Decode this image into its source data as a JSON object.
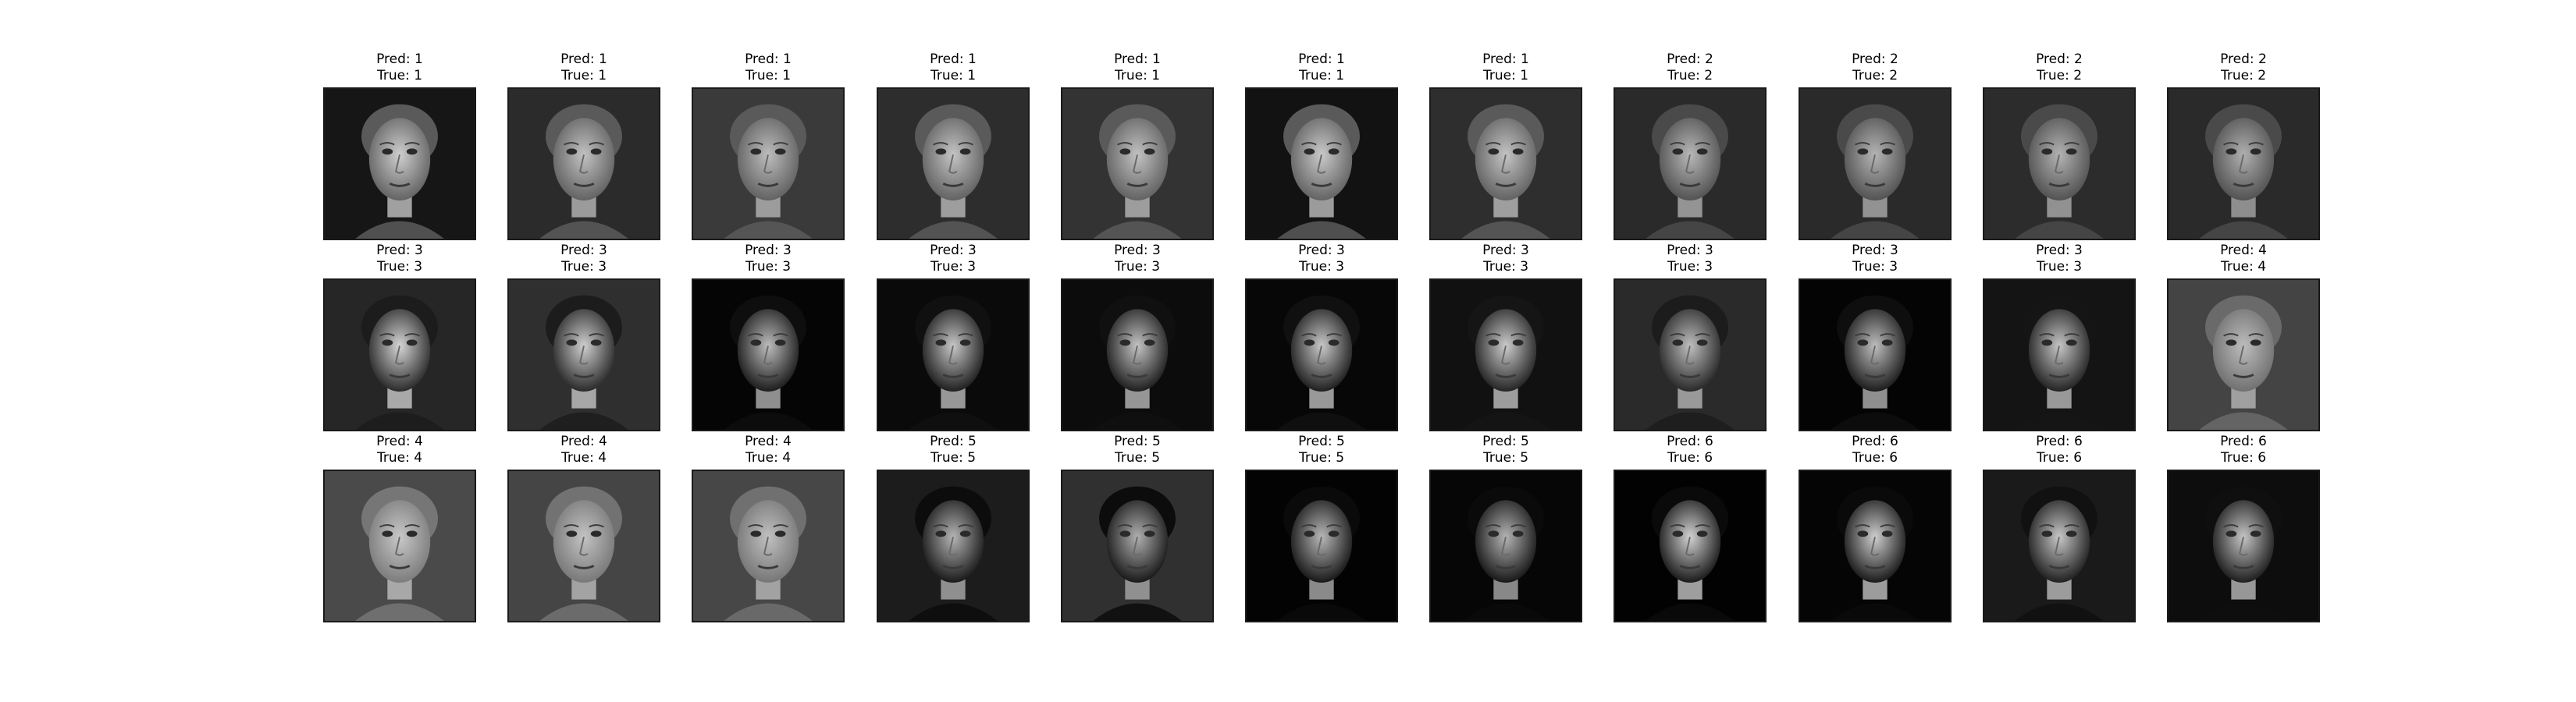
{
  "grid": {
    "rows": 3,
    "columns": 11,
    "pred_prefix": "Pred: ",
    "true_prefix": "True: ",
    "panels": [
      {
        "pred": "1",
        "true": "1",
        "background": "#161616",
        "face": "#cfcfcf",
        "hair": "#5a5a5a"
      },
      {
        "pred": "1",
        "true": "1",
        "background": "#2b2b2b",
        "face": "#c2c2c2",
        "hair": "#5a5a5a"
      },
      {
        "pred": "1",
        "true": "1",
        "background": "#3a3a3a",
        "face": "#bdbdbd",
        "hair": "#5a5a5a"
      },
      {
        "pred": "1",
        "true": "1",
        "background": "#2d2d2d",
        "face": "#c4c4c4",
        "hair": "#5a5a5a"
      },
      {
        "pred": "1",
        "true": "1",
        "background": "#333333",
        "face": "#c2c2c2",
        "hair": "#5a5a5a"
      },
      {
        "pred": "1",
        "true": "1",
        "background": "#121212",
        "face": "#cacaca",
        "hair": "#5a5a5a"
      },
      {
        "pred": "1",
        "true": "1",
        "background": "#2e2e2e",
        "face": "#c4c4c4",
        "hair": "#5a5a5a"
      },
      {
        "pred": "2",
        "true": "2",
        "background": "#2a2a2a",
        "face": "#b8b8b8",
        "hair": "#4a4a4a"
      },
      {
        "pred": "2",
        "true": "2",
        "background": "#2a2a2a",
        "face": "#b5b5b5",
        "hair": "#4a4a4a"
      },
      {
        "pred": "2",
        "true": "2",
        "background": "#2c2c2c",
        "face": "#b3b3b3",
        "hair": "#4a4a4a"
      },
      {
        "pred": "2",
        "true": "2",
        "background": "#2a2a2a",
        "face": "#b0b0b0",
        "hair": "#4a4a4a"
      },
      {
        "pred": "3",
        "true": "3",
        "background": "#262626",
        "face": "#d6d6d6",
        "hair": "#1c1c1c"
      },
      {
        "pred": "3",
        "true": "3",
        "background": "#2f2f2f",
        "face": "#cfcfcf",
        "hair": "#1c1c1c"
      },
      {
        "pred": "3",
        "true": "3",
        "background": "#050505",
        "face": "#bdbdbd",
        "hair": "#0e0e0e"
      },
      {
        "pred": "3",
        "true": "3",
        "background": "#0a0a0a",
        "face": "#c7c7c7",
        "hair": "#101010"
      },
      {
        "pred": "3",
        "true": "3",
        "background": "#0c0c0c",
        "face": "#c4c4c4",
        "hair": "#101010"
      },
      {
        "pred": "3",
        "true": "3",
        "background": "#070707",
        "face": "#c9c9c9",
        "hair": "#101010"
      },
      {
        "pred": "3",
        "true": "3",
        "background": "#111111",
        "face": "#cccccc",
        "hair": "#151515"
      },
      {
        "pred": "3",
        "true": "3",
        "background": "#2a2a2a",
        "face": "#bfbfbf",
        "hair": "#1c1c1c"
      },
      {
        "pred": "3",
        "true": "3",
        "background": "#040404",
        "face": "#bebebe",
        "hair": "#0e0e0e"
      },
      {
        "pred": "3",
        "true": "3",
        "background": "#141414",
        "face": "#c6c6c6",
        "hair": "#151515"
      },
      {
        "pred": "4",
        "true": "4",
        "background": "#444444",
        "face": "#bdbdbd",
        "hair": "#6a6a6a"
      },
      {
        "pred": "4",
        "true": "4",
        "background": "#4a4a4a",
        "face": "#c8c8c8",
        "hair": "#767676"
      },
      {
        "pred": "4",
        "true": "4",
        "background": "#454545",
        "face": "#c3c3c3",
        "hair": "#727272"
      },
      {
        "pred": "4",
        "true": "4",
        "background": "#474747",
        "face": "#c0c0c0",
        "hair": "#707070"
      },
      {
        "pred": "5",
        "true": "5",
        "background": "#1c1c1c",
        "face": "#b5b5b5",
        "hair": "#0c0c0c"
      },
      {
        "pred": "5",
        "true": "5",
        "background": "#303030",
        "face": "#b0b0b0",
        "hair": "#0c0c0c"
      },
      {
        "pred": "5",
        "true": "5",
        "background": "#030303",
        "face": "#b8b8b8",
        "hair": "#0a0a0a"
      },
      {
        "pred": "5",
        "true": "5",
        "background": "#060606",
        "face": "#b4b4b4",
        "hair": "#0a0a0a"
      },
      {
        "pred": "6",
        "true": "6",
        "background": "#020202",
        "face": "#d3d3d3",
        "hair": "#0a0a0a"
      },
      {
        "pred": "6",
        "true": "6",
        "background": "#050505",
        "face": "#cfcfcf",
        "hair": "#0a0a0a"
      },
      {
        "pred": "6",
        "true": "6",
        "background": "#1a1a1a",
        "face": "#c8c8c8",
        "hair": "#111111"
      },
      {
        "pred": "6",
        "true": "6",
        "background": "#0d0d0d",
        "face": "#c5c5c5",
        "hair": "#0f0f0f"
      }
    ]
  }
}
